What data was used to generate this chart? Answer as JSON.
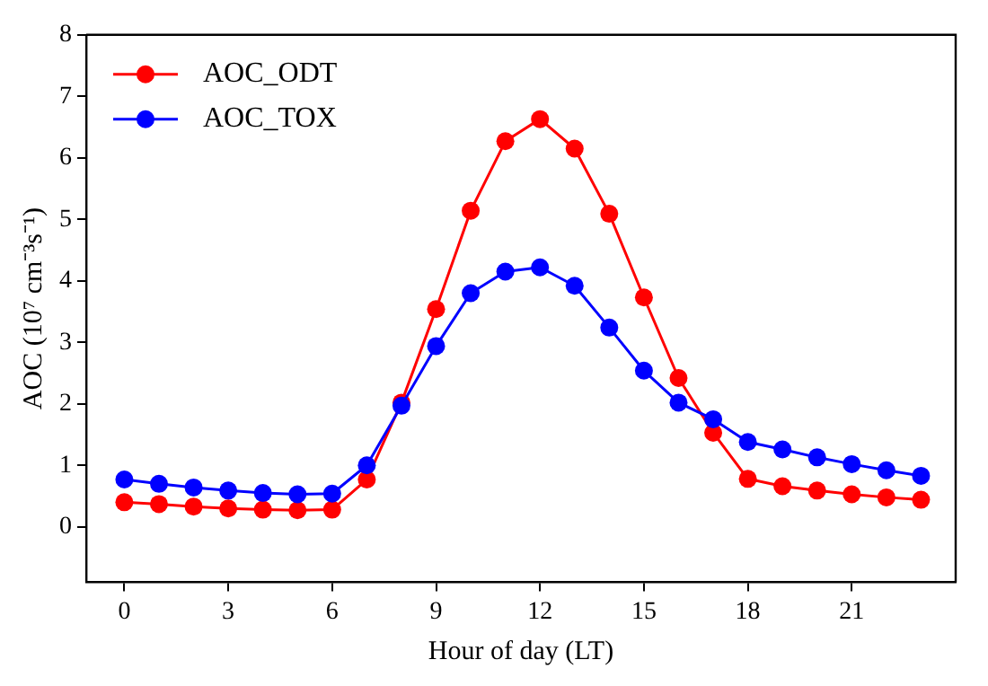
{
  "chart_data": {
    "type": "line",
    "xlabel": "Hour of day (LT)",
    "ylabel": "AOC (10⁷ cm⁻³s⁻¹)",
    "x": [
      0,
      1,
      2,
      3,
      4,
      5,
      6,
      7,
      8,
      9,
      10,
      11,
      12,
      13,
      14,
      15,
      16,
      17,
      18,
      19,
      20,
      21,
      22,
      23
    ],
    "series": [
      {
        "name": "AOC_ODT",
        "color": "#ff0000",
        "values": [
          0.4,
          0.37,
          0.33,
          0.3,
          0.28,
          0.27,
          0.28,
          0.77,
          2.02,
          3.54,
          5.14,
          6.27,
          6.63,
          6.15,
          5.09,
          3.73,
          2.42,
          1.53,
          0.78,
          0.66,
          0.59,
          0.53,
          0.48,
          0.44
        ]
      },
      {
        "name": "AOC_TOX",
        "color": "#0000ff",
        "values": [
          0.77,
          0.7,
          0.64,
          0.59,
          0.55,
          0.53,
          0.54,
          1.0,
          1.97,
          2.94,
          3.8,
          4.15,
          4.22,
          3.92,
          3.24,
          2.54,
          2.02,
          1.75,
          1.38,
          1.26,
          1.13,
          1.02,
          0.92,
          0.83
        ]
      }
    ],
    "xlim": [
      -1.1,
      24
    ],
    "xticks": [
      0,
      3,
      6,
      9,
      12,
      15,
      18,
      21
    ],
    "ylim": [
      -0.9,
      8
    ],
    "yticks": [
      0,
      1,
      2,
      3,
      4,
      5,
      6,
      7,
      8
    ],
    "grid": false,
    "legend": "top left",
    "marker": "circle",
    "line_style": "solid"
  }
}
